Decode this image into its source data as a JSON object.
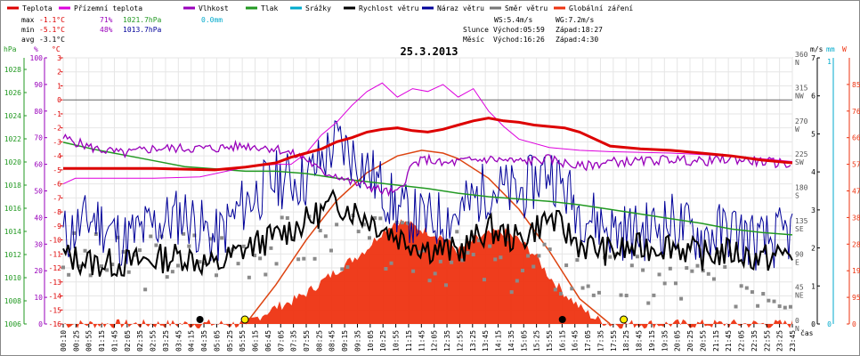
{
  "chart_data": {
    "type": "line",
    "title": "25.3.2013",
    "legend": [
      {
        "label": "Teplota",
        "color": "#dd0000"
      },
      {
        "label": "Přízemní teplota",
        "color": "#dd00dd"
      },
      {
        "label": "Vlhkost",
        "color": "#9900bb"
      },
      {
        "label": "Tlak",
        "color": "#229922"
      },
      {
        "label": "Srážky",
        "color": "#00aacc"
      },
      {
        "label": "Rychlost větru",
        "color": "#000000"
      },
      {
        "label": "Náraz větru",
        "color": "#000099"
      },
      {
        "label": "Směr větru",
        "color": "#777777"
      },
      {
        "label": "Globální záření",
        "color": "#ee3311"
      }
    ],
    "stats": {
      "max_label": "max",
      "max_temp": "-1.1°C",
      "max_hum": "71%",
      "max_press": "1021.7hPa",
      "max_rain": "0.0mm",
      "min_label": "min",
      "min_temp": "-5.1°C",
      "min_hum": "48%",
      "min_press": "1013.7hPa",
      "avg_label": "avg",
      "avg_temp": "-3.1°C"
    },
    "wind": {
      "ws": "WS:5.4m/s",
      "wg": "WG:7.2m/s"
    },
    "sun": {
      "label": "Slunce",
      "rise": "Východ:05:59",
      "set": "Západ:18:27"
    },
    "moon": {
      "label": "Měsíc",
      "rise": "Východ:16:26",
      "set": "Západ:4:30"
    },
    "axes": {
      "hpa_label": "hPa",
      "hum_label": "%",
      "temp_label": "°C",
      "ms_label": "m/s",
      "mm_label": "mm",
      "w_label": "W",
      "x_label": "čas",
      "hpa_ticks": [
        "1028",
        "1026",
        "1024",
        "1022",
        "1020",
        "1018",
        "1016",
        "1014",
        "1012",
        "1010",
        "1008",
        "1006"
      ],
      "hum_ticks": [
        "100",
        "90",
        "80",
        "70",
        "60",
        "50",
        "40",
        "30",
        "20",
        "10",
        "0"
      ],
      "temp_ticks": [
        "3",
        "2",
        "1",
        "0",
        "-1",
        "-2",
        "-3",
        "-4",
        "-5",
        "-6",
        "-7",
        "-8",
        "-9",
        "-10",
        "-11",
        "-12",
        "-13",
        "-14",
        "-15",
        "-16"
      ],
      "dir_ticks": [
        "360",
        "315",
        "270",
        "225",
        "180",
        "135",
        "90",
        "45",
        "0"
      ],
      "dir_labels": [
        "N",
        "NW",
        "W",
        "SW",
        "S",
        "SE",
        "E",
        "NE",
        "N"
      ],
      "ms_ticks": [
        "0",
        "1",
        "2",
        "3",
        "4",
        "5",
        "6",
        "7"
      ],
      "mm_ticks": [
        "0",
        "1"
      ],
      "w_ticks": [
        "0",
        "95",
        "190",
        "285",
        "380",
        "475",
        "570",
        "665",
        "760",
        "855"
      ],
      "x_ticks": [
        "00:10",
        "00:25",
        "00:55",
        "01:15",
        "01:45",
        "02:05",
        "02:35",
        "02:55",
        "03:25",
        "03:45",
        "04:15",
        "04:35",
        "05:05",
        "05:25",
        "05:55",
        "06:15",
        "06:45",
        "07:05",
        "07:35",
        "07:55",
        "08:25",
        "08:45",
        "09:15",
        "09:35",
        "10:05",
        "10:25",
        "10:55",
        "11:15",
        "11:45",
        "12:05",
        "12:35",
        "12:55",
        "13:25",
        "13:45",
        "14:15",
        "14:35",
        "15:05",
        "15:25",
        "15:55",
        "16:15",
        "16:45",
        "17:05",
        "17:35",
        "17:55",
        "18:25",
        "18:45",
        "19:15",
        "19:35",
        "20:05",
        "20:25",
        "20:55",
        "21:15",
        "21:45",
        "22:05",
        "22:35",
        "22:55",
        "23:25",
        "23:45"
      ]
    },
    "ranges": {
      "temp": [
        -16,
        3
      ],
      "pressure": [
        1006,
        1029
      ],
      "humidity": [
        0,
        100
      ],
      "wind_ms": [
        0,
        7
      ],
      "radiation": [
        0,
        950
      ],
      "direction": [
        0,
        360
      ],
      "hours": [
        0,
        24
      ]
    },
    "series": {
      "temperature": [
        [
          0,
          -4.9
        ],
        [
          1,
          -4.9
        ],
        [
          2,
          -4.9
        ],
        [
          3,
          -4.9
        ],
        [
          4,
          -4.95
        ],
        [
          5,
          -5.0
        ],
        [
          6,
          -4.8
        ],
        [
          7,
          -4.5
        ],
        [
          7.5,
          -4.1
        ],
        [
          8,
          -3.8
        ],
        [
          8.5,
          -3.5
        ],
        [
          9,
          -3.0
        ],
        [
          9.5,
          -2.7
        ],
        [
          10,
          -2.3
        ],
        [
          10.5,
          -2.1
        ],
        [
          11,
          -2.0
        ],
        [
          11.5,
          -2.2
        ],
        [
          12,
          -2.3
        ],
        [
          12.5,
          -2.1
        ],
        [
          13,
          -1.8
        ],
        [
          13.5,
          -1.5
        ],
        [
          14,
          -1.3
        ],
        [
          14.5,
          -1.5
        ],
        [
          15,
          -1.6
        ],
        [
          15.5,
          -1.8
        ],
        [
          16,
          -1.9
        ],
        [
          16.5,
          -2.0
        ],
        [
          17,
          -2.3
        ],
        [
          18,
          -3.3
        ],
        [
          19,
          -3.5
        ],
        [
          20,
          -3.6
        ],
        [
          21,
          -3.8
        ],
        [
          22,
          -4.0
        ],
        [
          23,
          -4.3
        ],
        [
          24,
          -4.5
        ]
      ],
      "ground_temp": [
        [
          0,
          -6.0
        ],
        [
          0.4,
          -5.6
        ],
        [
          3,
          -5.6
        ],
        [
          4.5,
          -5.5
        ],
        [
          6,
          -4.8
        ],
        [
          7,
          -4.6
        ],
        [
          7.5,
          -4.6
        ],
        [
          8,
          -3.8
        ],
        [
          8.5,
          -2.5
        ],
        [
          9,
          -1.6
        ],
        [
          9.5,
          -0.4
        ],
        [
          10,
          0.6
        ],
        [
          10.5,
          1.2
        ],
        [
          11,
          0.2
        ],
        [
          11.5,
          0.8
        ],
        [
          12,
          0.6
        ],
        [
          12.5,
          1.1
        ],
        [
          13,
          0.2
        ],
        [
          13.5,
          0.8
        ],
        [
          14,
          -0.8
        ],
        [
          14.5,
          -1.9
        ],
        [
          15,
          -2.8
        ],
        [
          16,
          -3.4
        ],
        [
          17,
          -3.6
        ],
        [
          18,
          -3.7
        ],
        [
          20,
          -3.8
        ],
        [
          22,
          -4.0
        ],
        [
          24,
          -4.4
        ]
      ],
      "humidity": [
        [
          0,
          70
        ],
        [
          1,
          66
        ],
        [
          2,
          64
        ],
        [
          3,
          66
        ],
        [
          4,
          66
        ],
        [
          5,
          66
        ],
        [
          6,
          67
        ],
        [
          7,
          66
        ],
        [
          8,
          62
        ],
        [
          8.5,
          57
        ],
        [
          9,
          56
        ],
        [
          9.5,
          53
        ],
        [
          10,
          52
        ],
        [
          10.5,
          50
        ],
        [
          11,
          49
        ],
        [
          11.5,
          60
        ],
        [
          12,
          62
        ],
        [
          12.5,
          60
        ],
        [
          13,
          61
        ],
        [
          14,
          62
        ],
        [
          15,
          61
        ],
        [
          16,
          62
        ],
        [
          17,
          59
        ],
        [
          18,
          61
        ],
        [
          19,
          61
        ],
        [
          20,
          62
        ],
        [
          21,
          61
        ],
        [
          22,
          62
        ],
        [
          23,
          61
        ],
        [
          24,
          60
        ]
      ],
      "pressure": [
        [
          0,
          1021.7
        ],
        [
          1,
          1021.1
        ],
        [
          2,
          1020.6
        ],
        [
          3,
          1020.1
        ],
        [
          4,
          1019.6
        ],
        [
          5,
          1019.4
        ],
        [
          6,
          1019.2
        ],
        [
          7,
          1019.2
        ],
        [
          8,
          1019.0
        ],
        [
          9,
          1018.6
        ],
        [
          10,
          1018.3
        ],
        [
          11,
          1018.0
        ],
        [
          12,
          1017.7
        ],
        [
          13,
          1017.3
        ],
        [
          14,
          1017.0
        ],
        [
          15,
          1016.8
        ],
        [
          16,
          1016.6
        ],
        [
          17,
          1016.3
        ],
        [
          18,
          1015.9
        ],
        [
          19,
          1015.5
        ],
        [
          20,
          1015.1
        ],
        [
          21,
          1014.7
        ],
        [
          22,
          1014.2
        ],
        [
          23,
          1013.9
        ],
        [
          24,
          1013.7
        ]
      ],
      "radiation": [
        [
          0,
          0
        ],
        [
          6,
          0
        ],
        [
          6.5,
          30
        ],
        [
          7,
          60
        ],
        [
          7.5,
          80
        ],
        [
          8,
          110
        ],
        [
          8.5,
          150
        ],
        [
          9,
          190
        ],
        [
          9.5,
          230
        ],
        [
          10,
          270
        ],
        [
          10.5,
          330
        ],
        [
          11,
          370
        ],
        [
          11.5,
          350
        ],
        [
          12,
          330
        ],
        [
          12.5,
          310
        ],
        [
          13,
          260
        ],
        [
          13.5,
          300
        ],
        [
          14,
          320
        ],
        [
          14.5,
          330
        ],
        [
          15,
          300
        ],
        [
          15.5,
          250
        ],
        [
          16,
          170
        ],
        [
          16.5,
          110
        ],
        [
          17,
          60
        ],
        [
          17.5,
          20
        ],
        [
          18,
          0
        ],
        [
          24,
          0
        ]
      ],
      "clear_sky_radiation": [
        [
          6,
          0
        ],
        [
          7,
          140
        ],
        [
          8,
          300
        ],
        [
          9,
          440
        ],
        [
          10,
          540
        ],
        [
          11,
          600
        ],
        [
          11.8,
          620
        ],
        [
          12.5,
          610
        ],
        [
          13,
          590
        ],
        [
          14,
          520
        ],
        [
          15,
          410
        ],
        [
          16,
          260
        ],
        [
          17,
          90
        ],
        [
          18,
          0
        ]
      ],
      "wind_speed": [
        [
          0,
          1.8
        ],
        [
          1,
          1.6
        ],
        [
          2,
          1.6
        ],
        [
          3,
          1.7
        ],
        [
          4,
          1.8
        ],
        [
          5,
          1.5
        ],
        [
          6,
          2.0
        ],
        [
          7,
          2.3
        ],
        [
          8,
          2.7
        ],
        [
          9,
          3.2
        ],
        [
          10,
          2.8
        ],
        [
          11,
          2.3
        ],
        [
          12,
          2.0
        ],
        [
          13,
          1.9
        ],
        [
          14,
          2.5
        ],
        [
          15,
          2.2
        ],
        [
          16,
          2.8
        ],
        [
          17,
          2.1
        ],
        [
          18,
          1.9
        ],
        [
          19,
          2.0
        ],
        [
          20,
          2.1
        ],
        [
          21,
          1.8
        ],
        [
          22,
          1.9
        ],
        [
          23,
          1.7
        ],
        [
          24,
          1.9
        ]
      ],
      "wind_gust": [
        [
          0,
          2.3
        ],
        [
          1,
          2.8
        ],
        [
          2,
          2.2
        ],
        [
          3,
          2.6
        ],
        [
          4,
          2.9
        ],
        [
          5,
          2.2
        ],
        [
          6,
          3.2
        ],
        [
          7,
          3.8
        ],
        [
          8,
          3.8
        ],
        [
          9,
          4.8
        ],
        [
          10,
          4.1
        ],
        [
          11,
          3.0
        ],
        [
          12,
          2.7
        ],
        [
          13,
          2.9
        ],
        [
          14,
          3.6
        ],
        [
          15,
          3.4
        ],
        [
          16,
          4.1
        ],
        [
          17,
          3.0
        ],
        [
          18,
          2.5
        ],
        [
          19,
          2.4
        ],
        [
          20,
          2.7
        ],
        [
          21,
          2.3
        ],
        [
          22,
          2.5
        ],
        [
          23,
          2.1
        ],
        [
          24,
          2.4
        ]
      ],
      "wind_direction": [
        [
          0,
          90
        ],
        [
          2,
          80
        ],
        [
          4,
          95
        ],
        [
          6,
          100
        ],
        [
          8,
          115
        ],
        [
          10,
          110
        ],
        [
          12,
          95
        ],
        [
          14,
          80
        ],
        [
          16,
          75
        ],
        [
          18,
          60
        ],
        [
          20,
          55
        ],
        [
          22,
          60
        ],
        [
          24,
          55
        ]
      ],
      "sun_markers": [
        [
          5.98,
          "sunrise"
        ],
        [
          18.45,
          "sunset"
        ]
      ],
      "moon_markers": [
        [
          4.5,
          "moonset"
        ],
        [
          16.43,
          "moonrise"
        ]
      ]
    }
  }
}
